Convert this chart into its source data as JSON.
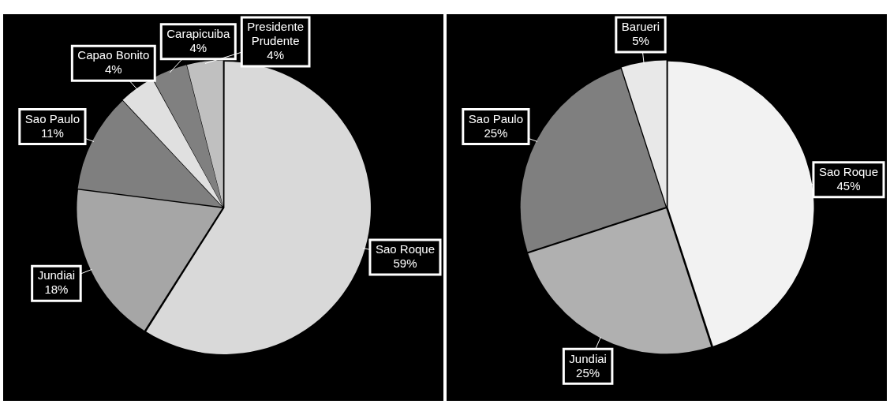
{
  "chart_data": [
    {
      "type": "pie",
      "categories": [
        "Sao Roque",
        "Jundiai",
        "Sao Paulo",
        "Capao Bonito",
        "Carapicuiba",
        "Presidente Prudente"
      ],
      "values": [
        59,
        18,
        11,
        4,
        4,
        4
      ],
      "colors": [
        "#d9d9d9",
        "#a6a6a6",
        "#7f7f7f",
        "#e0e0e0",
        "#808080",
        "#c0c0c0"
      ],
      "value_labels": [
        "59%",
        "18%",
        "11%",
        "4%",
        "4%",
        "4%"
      ],
      "legend": false
    },
    {
      "type": "pie",
      "categories": [
        "Sao Roque",
        "Jundiai",
        "Sao Paulo",
        "Barueri"
      ],
      "values": [
        45,
        25,
        25,
        5
      ],
      "colors": [
        "#f2f2f2",
        "#b0b0b0",
        "#7f7f7f",
        "#e8e8e8"
      ],
      "value_labels": [
        "45%",
        "25%",
        "25%",
        "5%"
      ],
      "legend": false
    }
  ]
}
